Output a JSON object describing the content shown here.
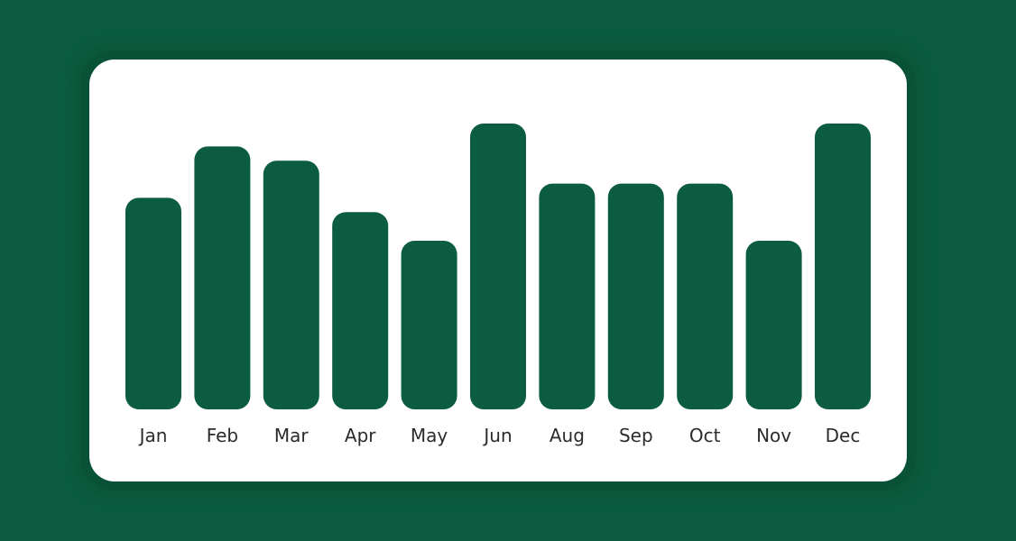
{
  "chart_data": {
    "type": "bar",
    "categories": [
      "Jan",
      "Feb",
      "Mar",
      "Apr",
      "May",
      "Jun",
      "Aug",
      "Sep",
      "Oct",
      "Nov",
      "Dec"
    ],
    "values": [
      74,
      92,
      87,
      69,
      59,
      100,
      79,
      79,
      79,
      59,
      100
    ],
    "ylim": [
      0,
      100
    ],
    "grid": false,
    "legend": "none",
    "title": "",
    "xlabel": "",
    "ylabel": "",
    "bar_color": "#0b5c40",
    "label_color": "#2b2b2b"
  },
  "colors": {
    "page_background": "#0b5c40",
    "card_background": "#ffffff"
  }
}
